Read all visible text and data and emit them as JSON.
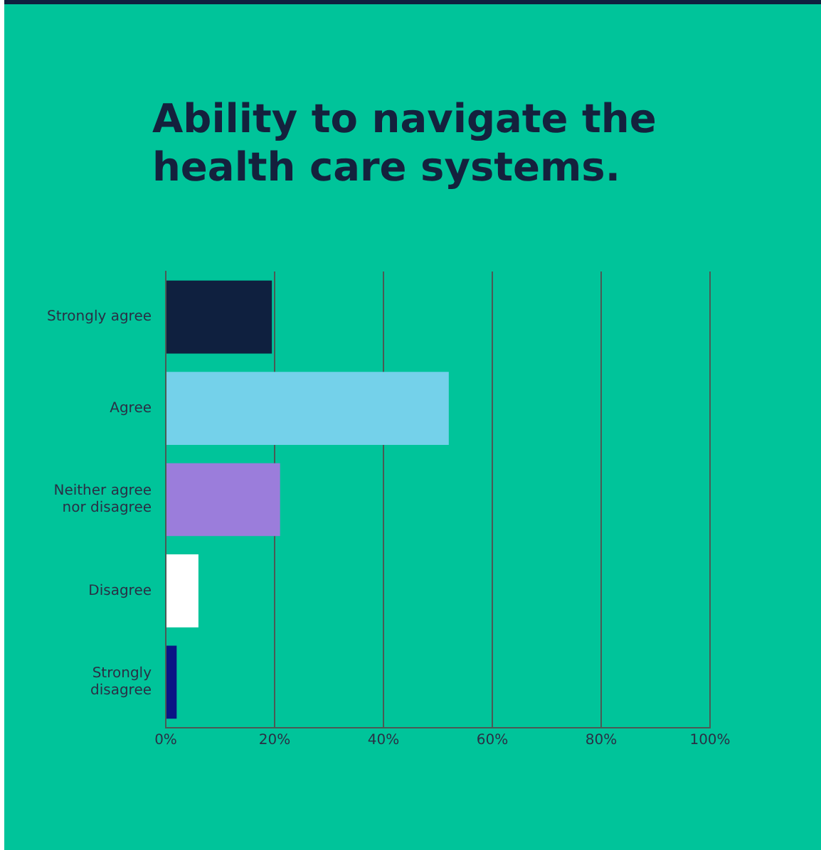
{
  "chart_data": {
    "type": "bar",
    "orientation": "horizontal",
    "title": "Ability to navigate the health care systems.",
    "categories": [
      "Strongly agree",
      "Agree",
      "Neither agree nor disagree",
      "Disagree",
      "Strongly disagree"
    ],
    "values": [
      19.5,
      52,
      21,
      6,
      2
    ],
    "colors": [
      "#0f203f",
      "#74d1ea",
      "#9b7ddb",
      "#ffffff",
      "#0a1585"
    ],
    "xlim": [
      0,
      100
    ],
    "xticks": [
      {
        "value": 0,
        "label": "0%"
      },
      {
        "value": 20,
        "label": "20%"
      },
      {
        "value": 40,
        "label": "40%"
      },
      {
        "value": 60,
        "label": "60%"
      },
      {
        "value": 80,
        "label": "80%"
      },
      {
        "value": 100,
        "label": "100%"
      }
    ],
    "grid": "x",
    "legend": false
  }
}
